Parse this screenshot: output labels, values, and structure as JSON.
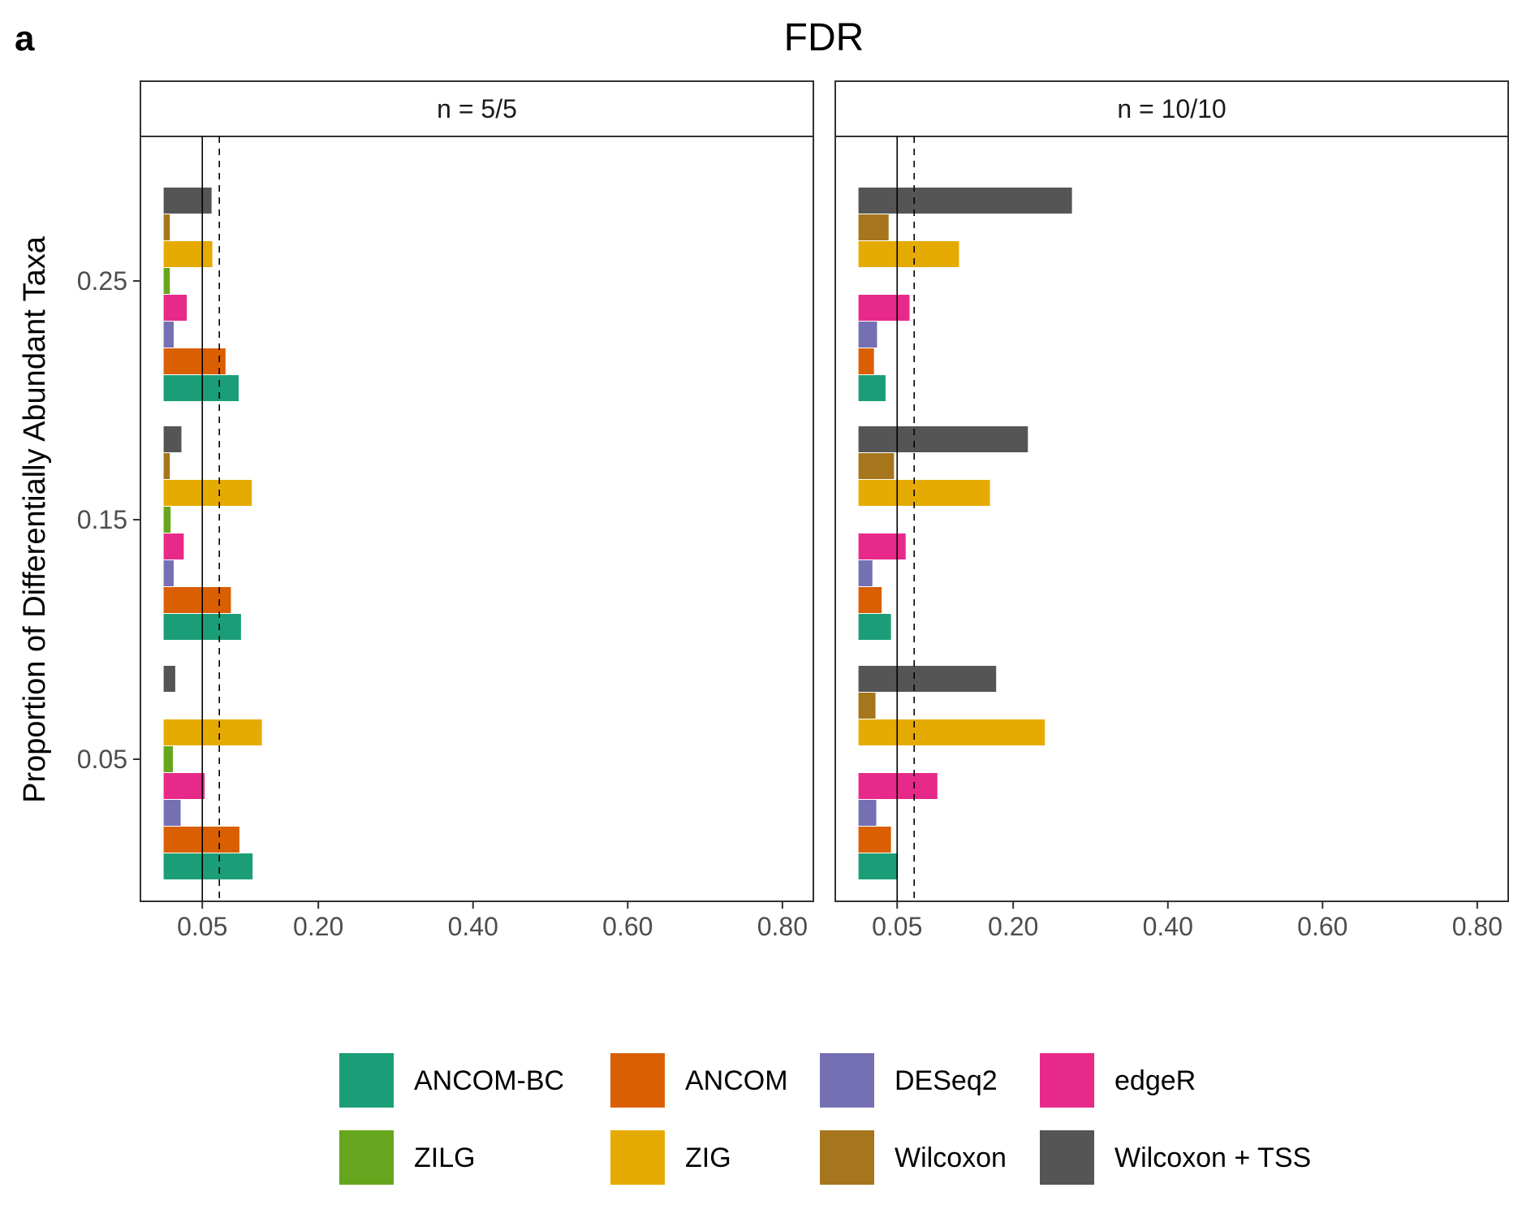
{
  "figure": {
    "panel_letter": "a",
    "title": "FDR"
  },
  "chart_data": {
    "type": "bar",
    "orientation": "horizontal",
    "title": "FDR",
    "ylabel": "Proportion of Differentially Abundant Taxa",
    "xlabel": "",
    "xlim": [
      0,
      0.8
    ],
    "x_ticks": [
      0.05,
      0.2,
      0.4,
      0.6,
      0.8
    ],
    "x_tick_labels": [
      "0.05",
      "0.20",
      "0.40",
      "0.60",
      "0.80"
    ],
    "y_categories": [
      0.05,
      0.15,
      0.25
    ],
    "y_tick_labels": [
      "0.05",
      "0.15",
      "0.25"
    ],
    "reference_lines": [
      {
        "value": 0.05,
        "style": "solid"
      },
      {
        "value": 0.072,
        "style": "dashed"
      }
    ],
    "grid": false,
    "legend_position": "bottom",
    "series_order": [
      "ANCOM-BC",
      "ANCOM",
      "DESeq2",
      "edgeR",
      "ZILG",
      "ZIG",
      "Wilcoxon",
      "Wilcoxon + TSS"
    ],
    "series_colors": {
      "ANCOM-BC": "#1b9e77",
      "ANCOM": "#d95f02",
      "DESeq2": "#7570b3",
      "edgeR": "#e7298a",
      "ZILG": "#66a61e",
      "ZIG": "#e6ab02",
      "Wilcoxon": "#a6761d",
      "Wilcoxon + TSS": "#555555"
    },
    "panels": [
      {
        "strip": "n = 5/5",
        "series": [
          {
            "name": "ANCOM-BC",
            "values": [
              0.115,
              0.1,
              0.097
            ]
          },
          {
            "name": "ANCOM",
            "values": [
              0.098,
              0.087,
              0.08
            ]
          },
          {
            "name": "DESeq2",
            "values": [
              0.022,
              0.013,
              0.013
            ]
          },
          {
            "name": "edgeR",
            "values": [
              0.053,
              0.026,
              0.03
            ]
          },
          {
            "name": "ZILG",
            "values": [
              0.012,
              0.009,
              0.008
            ]
          },
          {
            "name": "ZIG",
            "values": [
              0.127,
              0.114,
              0.063
            ]
          },
          {
            "name": "Wilcoxon",
            "values": [
              0.0,
              0.008,
              0.008
            ]
          },
          {
            "name": "Wilcoxon + TSS",
            "values": [
              0.015,
              0.023,
              0.062
            ]
          }
        ]
      },
      {
        "strip": "n = 10/10",
        "series": [
          {
            "name": "ANCOM-BC",
            "values": [
              0.05,
              0.042,
              0.035
            ]
          },
          {
            "name": "ANCOM",
            "values": [
              0.042,
              0.03,
              0.02
            ]
          },
          {
            "name": "DESeq2",
            "values": [
              0.023,
              0.018,
              0.024
            ]
          },
          {
            "name": "edgeR",
            "values": [
              0.102,
              0.061,
              0.066
            ]
          },
          {
            "name": "ZILG",
            "values": [
              0.0,
              0.0,
              0.0
            ]
          },
          {
            "name": "ZIG",
            "values": [
              0.241,
              0.17,
              0.13
            ]
          },
          {
            "name": "Wilcoxon",
            "values": [
              0.022,
              0.046,
              0.039
            ]
          },
          {
            "name": "Wilcoxon + TSS",
            "values": [
              0.178,
              0.219,
              0.276
            ]
          }
        ]
      }
    ]
  }
}
